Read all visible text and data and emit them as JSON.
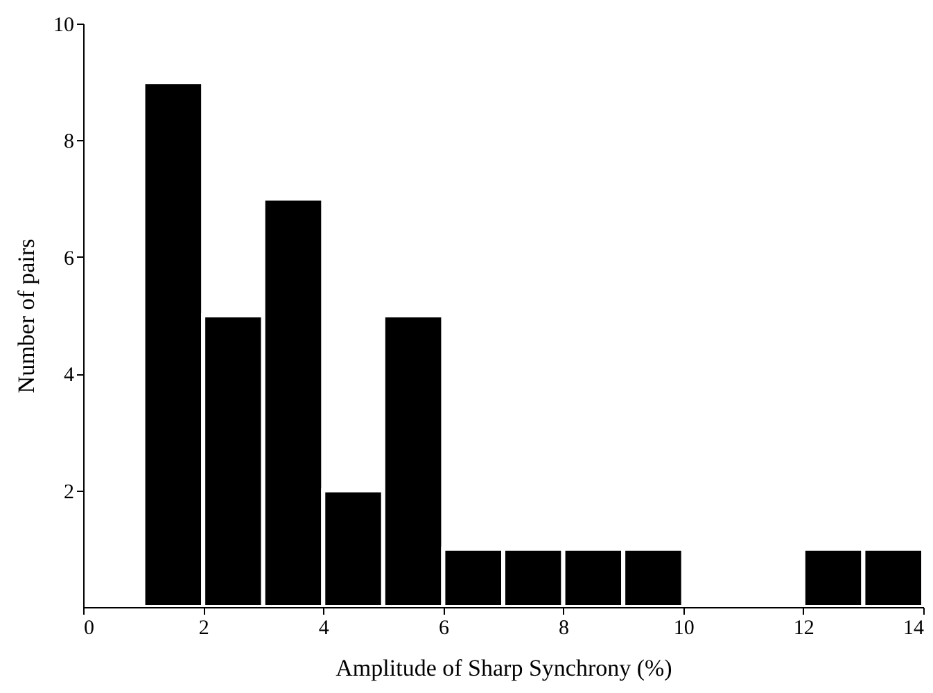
{
  "chart_data": {
    "type": "histogram",
    "bins": [
      1,
      2,
      3,
      4,
      5,
      6,
      7,
      8,
      9,
      10,
      11,
      12,
      13,
      14
    ],
    "values": [
      9,
      5,
      7,
      2,
      5,
      1,
      1,
      1,
      1,
      0,
      0,
      1,
      1
    ],
    "color": "#000000",
    "xlabel": "Amplitude of Sharp Synchrony  (%)",
    "ylabel": "Number  of  pairs",
    "xlim": [
      0,
      14
    ],
    "xticks": [
      0,
      2,
      4,
      6,
      8,
      10,
      12,
      14
    ],
    "ylim": [
      0,
      10
    ],
    "yticks": [
      2,
      4,
      6,
      8,
      10
    ],
    "grid": false
  }
}
